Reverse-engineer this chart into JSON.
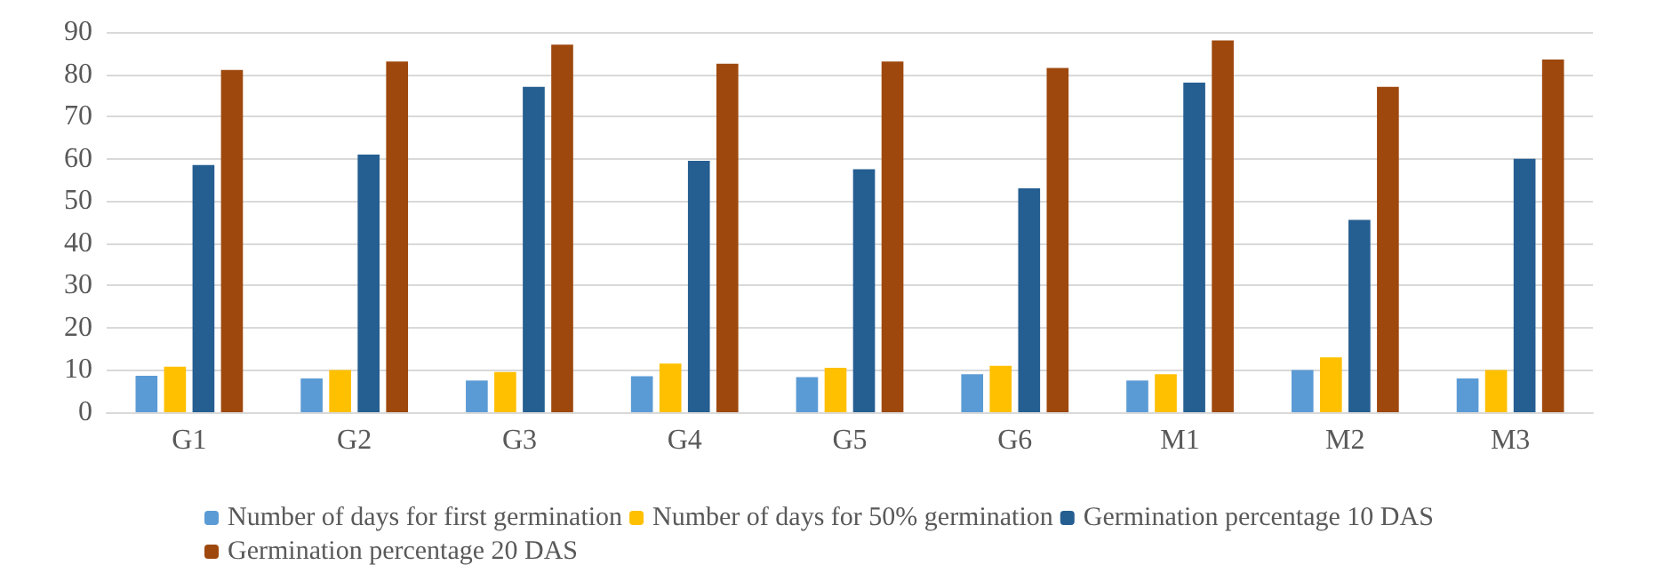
{
  "chart_data": {
    "type": "bar",
    "categories": [
      "G1",
      "G2",
      "G3",
      "G4",
      "G5",
      "G6",
      "M1",
      "M2",
      "M3"
    ],
    "series": [
      {
        "name": "Number of days for first germination",
        "color": "#5b9bd5",
        "values": [
          8.6,
          8,
          7.5,
          8.5,
          8.3,
          9,
          7.5,
          10,
          8
        ]
      },
      {
        "name": "Number of days for 50% germination",
        "color": "#ffc000",
        "values": [
          10.8,
          10,
          9.5,
          11.5,
          10.5,
          11,
          9,
          13,
          10
        ]
      },
      {
        "name": "Germination percentage 10 DAS",
        "color": "#255e91",
        "values": [
          58.5,
          61,
          77,
          59.5,
          57.5,
          53,
          78,
          45.5,
          60
        ]
      },
      {
        "name": "Germination percentage 20 DAS",
        "color": "#9e480e",
        "values": [
          81,
          83,
          87,
          82.5,
          83,
          81.5,
          88,
          77,
          83.5
        ]
      }
    ],
    "ylim": [
      0,
      90
    ],
    "yticks": [
      0,
      10,
      20,
      30,
      40,
      50,
      60,
      70,
      80,
      90
    ],
    "grid": "y",
    "legend": "bottom"
  }
}
